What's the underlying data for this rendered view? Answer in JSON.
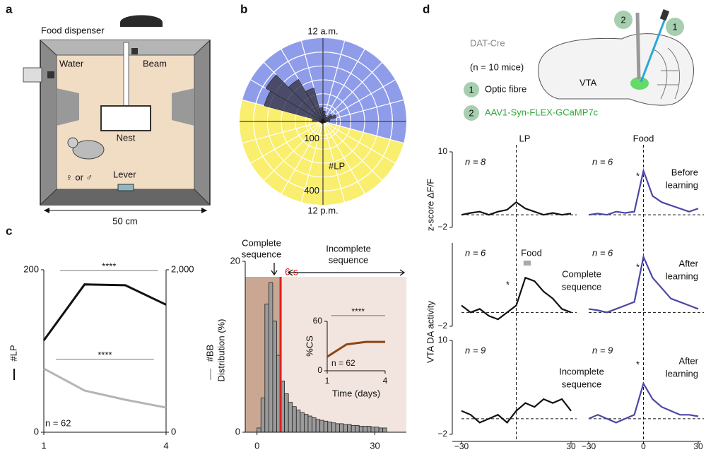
{
  "panel_labels": [
    "a",
    "b",
    "c",
    "d"
  ],
  "chamber": {
    "food_dispenser": "Food dispenser",
    "water": "Water",
    "beam": "Beam",
    "nest": "Nest",
    "sex": "♀ or ♂",
    "lever": "Lever",
    "width": "50 cm"
  },
  "schematic": {
    "line": "DAT-Cre",
    "mice": "(n = 10 mice)",
    "items": [
      {
        "number": "1",
        "label": "Optic fibre"
      },
      {
        "number": "2",
        "label": "AAV1-Syn-FLEX-GCaMP7c"
      }
    ],
    "region": "VTA",
    "fibre_labels": [
      "2",
      "1"
    ]
  },
  "chart_data": [
    {
      "type": "polar_bar",
      "top_label": "12 a.m.",
      "bottom_label": "12 p.m.",
      "r_label": "#LP",
      "rlim": [
        0,
        480
      ],
      "rticks": [
        100,
        400
      ],
      "values": [
        60,
        40,
        30,
        60,
        80,
        40,
        20,
        15,
        10,
        10,
        8,
        10,
        12,
        15,
        10,
        12,
        15,
        20,
        60,
        350,
        380,
        280,
        200,
        80
      ],
      "color": "#3d3d52",
      "dark_hours": [
        19,
        7
      ],
      "dark_color": "#8f9cea",
      "light_color": "#f9ee6e"
    },
    {
      "type": "line",
      "x": [
        1,
        2,
        3,
        4
      ],
      "xlim": [
        1,
        4
      ],
      "xticks": [
        1,
        4
      ],
      "ylim": [
        0,
        200
      ],
      "yticks": [
        0,
        200
      ],
      "y2lim": [
        0,
        2000
      ],
      "y2ticks": [
        0,
        {
          "value": 2000,
          "label": "2,000"
        }
      ],
      "series": [
        {
          "name": "#LP",
          "color": "#111111",
          "values": [
            113,
            182,
            181,
            157
          ]
        },
        {
          "name": "#BB",
          "color": "#b5b5b5",
          "axis": "y2",
          "values": [
            783,
            513,
            400,
            304
          ]
        }
      ],
      "significance": [
        {
          "label": "****",
          "from": 1.4,
          "to": 3.8,
          "y": 199
        },
        {
          "label": "****",
          "from": 1.3,
          "to": 3.7,
          "y": 90
        }
      ],
      "note": "n = 62"
    },
    {
      "type": "histogram",
      "bins": [
        0,
        1,
        2,
        3,
        4,
        5,
        6,
        7,
        8,
        9,
        10,
        11,
        12,
        13,
        14,
        15,
        16,
        17,
        18,
        19,
        20,
        21,
        22,
        23,
        24,
        25,
        26,
        27,
        28,
        29,
        30,
        31,
        32,
        33
      ],
      "counts": [
        0.5,
        4,
        15,
        17.5,
        13,
        9,
        6,
        4.5,
        3.5,
        3,
        2.6,
        2.3,
        2.1,
        1.9,
        1.7,
        1.5,
        1.4,
        1.3,
        1.2,
        1.1,
        1.0,
        1.0,
        0.9,
        0.9,
        0.8,
        0.8,
        0.7,
        0.7,
        0.7,
        0.6,
        0.6,
        0.5,
        0.5
      ],
      "color": "#9b9b9b",
      "xlim": [
        -3,
        38
      ],
      "xticks": [
        0,
        30
      ],
      "ylim": [
        0,
        20
      ],
      "yticks": [
        0,
        20
      ],
      "ylabel": "Distribution (%)",
      "threshold": {
        "value": 6,
        "label": "6 s"
      },
      "threshold_color": "#e0201b",
      "complete_label": [
        "Complete",
        "sequence"
      ],
      "incomplete_label": [
        "Incomplete",
        "sequence"
      ],
      "complete_color": "#c9a793",
      "incomplete_color": "#f2e4de"
    },
    {
      "type": "line",
      "x": [
        1,
        2,
        3,
        4
      ],
      "values": [
        17,
        32,
        35,
        35
      ],
      "color": "#8b4513",
      "xlim": [
        1,
        4
      ],
      "xticks": [
        1,
        4
      ],
      "ylim": [
        0,
        60
      ],
      "yticks": [
        0,
        60
      ],
      "xlabel": "Time (days)",
      "ylabel": "%CS",
      "significance": [
        {
          "label": "****",
          "from": 1.2,
          "to": 4,
          "y": 67
        }
      ],
      "note": "n = 62"
    },
    {
      "type": "traces",
      "x": [
        -30,
        -25,
        -20,
        -15,
        -10,
        -5,
        0,
        5,
        10,
        15,
        20,
        25,
        30
      ],
      "xlim": [
        -30,
        30
      ],
      "ylabel": "z-score ΔF/F",
      "ylabel2": "VTA DA activity",
      "columns": [
        {
          "title": "LP",
          "xticks": [
            {
              "value": -30,
              "label": "−30"
            },
            30
          ]
        },
        {
          "title": "Food",
          "xticks": [
            {
              "value": -30,
              "label": "−30"
            },
            0,
            30
          ]
        }
      ],
      "rows": [
        {
          "ylim": [
            -2,
            10
          ],
          "yticks": [
            {
              "value": -2,
              "label": "−2"
            },
            10
          ],
          "panels": [
            {
              "n": "n = 8",
              "color": "#111111",
              "values": [
                0,
                0.3,
                0.5,
                0,
                0.5,
                0.8,
                2,
                1,
                0.5,
                0,
                0.3,
                0,
                0.2
              ]
            },
            {
              "n": "n = 6",
              "color": "#4a47a6",
              "values": [
                0,
                0.2,
                0,
                0.5,
                0.3,
                0.5,
                7,
                3,
                2,
                1.5,
                1,
                0.5,
                1
              ],
              "label": [
                "Before",
                "learning"
              ],
              "star": "*"
            }
          ]
        },
        {
          "ylim": [
            -2,
            10
          ],
          "yticks": [
            {
              "value": -2,
              "label": "−2"
            }
          ],
          "panels": [
            {
              "n": "n = 6",
              "color": "#111111",
              "values": [
                1,
                0,
                0.5,
                -0.5,
                -1,
                0,
                1,
                5,
                4.5,
                3,
                2,
                0.5,
                0
              ],
              "label": [
                "Complete",
                "sequence"
              ],
              "star": "*",
              "marker": {
                "label": "Food",
                "from": 4,
                "to": 8,
                "color": "#aaaaaa"
              }
            },
            {
              "n": "n = 6",
              "color": "#4a47a6",
              "values": [
                0.5,
                0.3,
                0,
                0.5,
                1,
                1.5,
                8,
                5,
                3.5,
                2,
                1.5,
                1,
                0.5
              ],
              "label": [
                "After",
                "learning"
              ],
              "star": "*"
            }
          ]
        },
        {
          "ylim": [
            -2,
            10
          ],
          "yticks": [
            {
              "value": -2,
              "label": "−2"
            },
            10
          ],
          "panels": [
            {
              "n": "n = 9",
              "color": "#111111",
              "values": [
                1,
                0.5,
                -0.5,
                0,
                0.5,
                -0.5,
                1,
                2,
                1.5,
                2.5,
                2,
                2.5,
                1
              ],
              "label": [
                "Incomplete",
                "sequence"
              ]
            },
            {
              "n": "n = 9",
              "color": "#4a47a6",
              "values": [
                0,
                0.5,
                0,
                -0.5,
                0,
                0.5,
                4.5,
                2.5,
                1.5,
                1,
                0.5,
                0.5,
                0.3
              ],
              "label": [
                "After",
                "learning"
              ],
              "star": "*"
            }
          ]
        }
      ]
    }
  ]
}
